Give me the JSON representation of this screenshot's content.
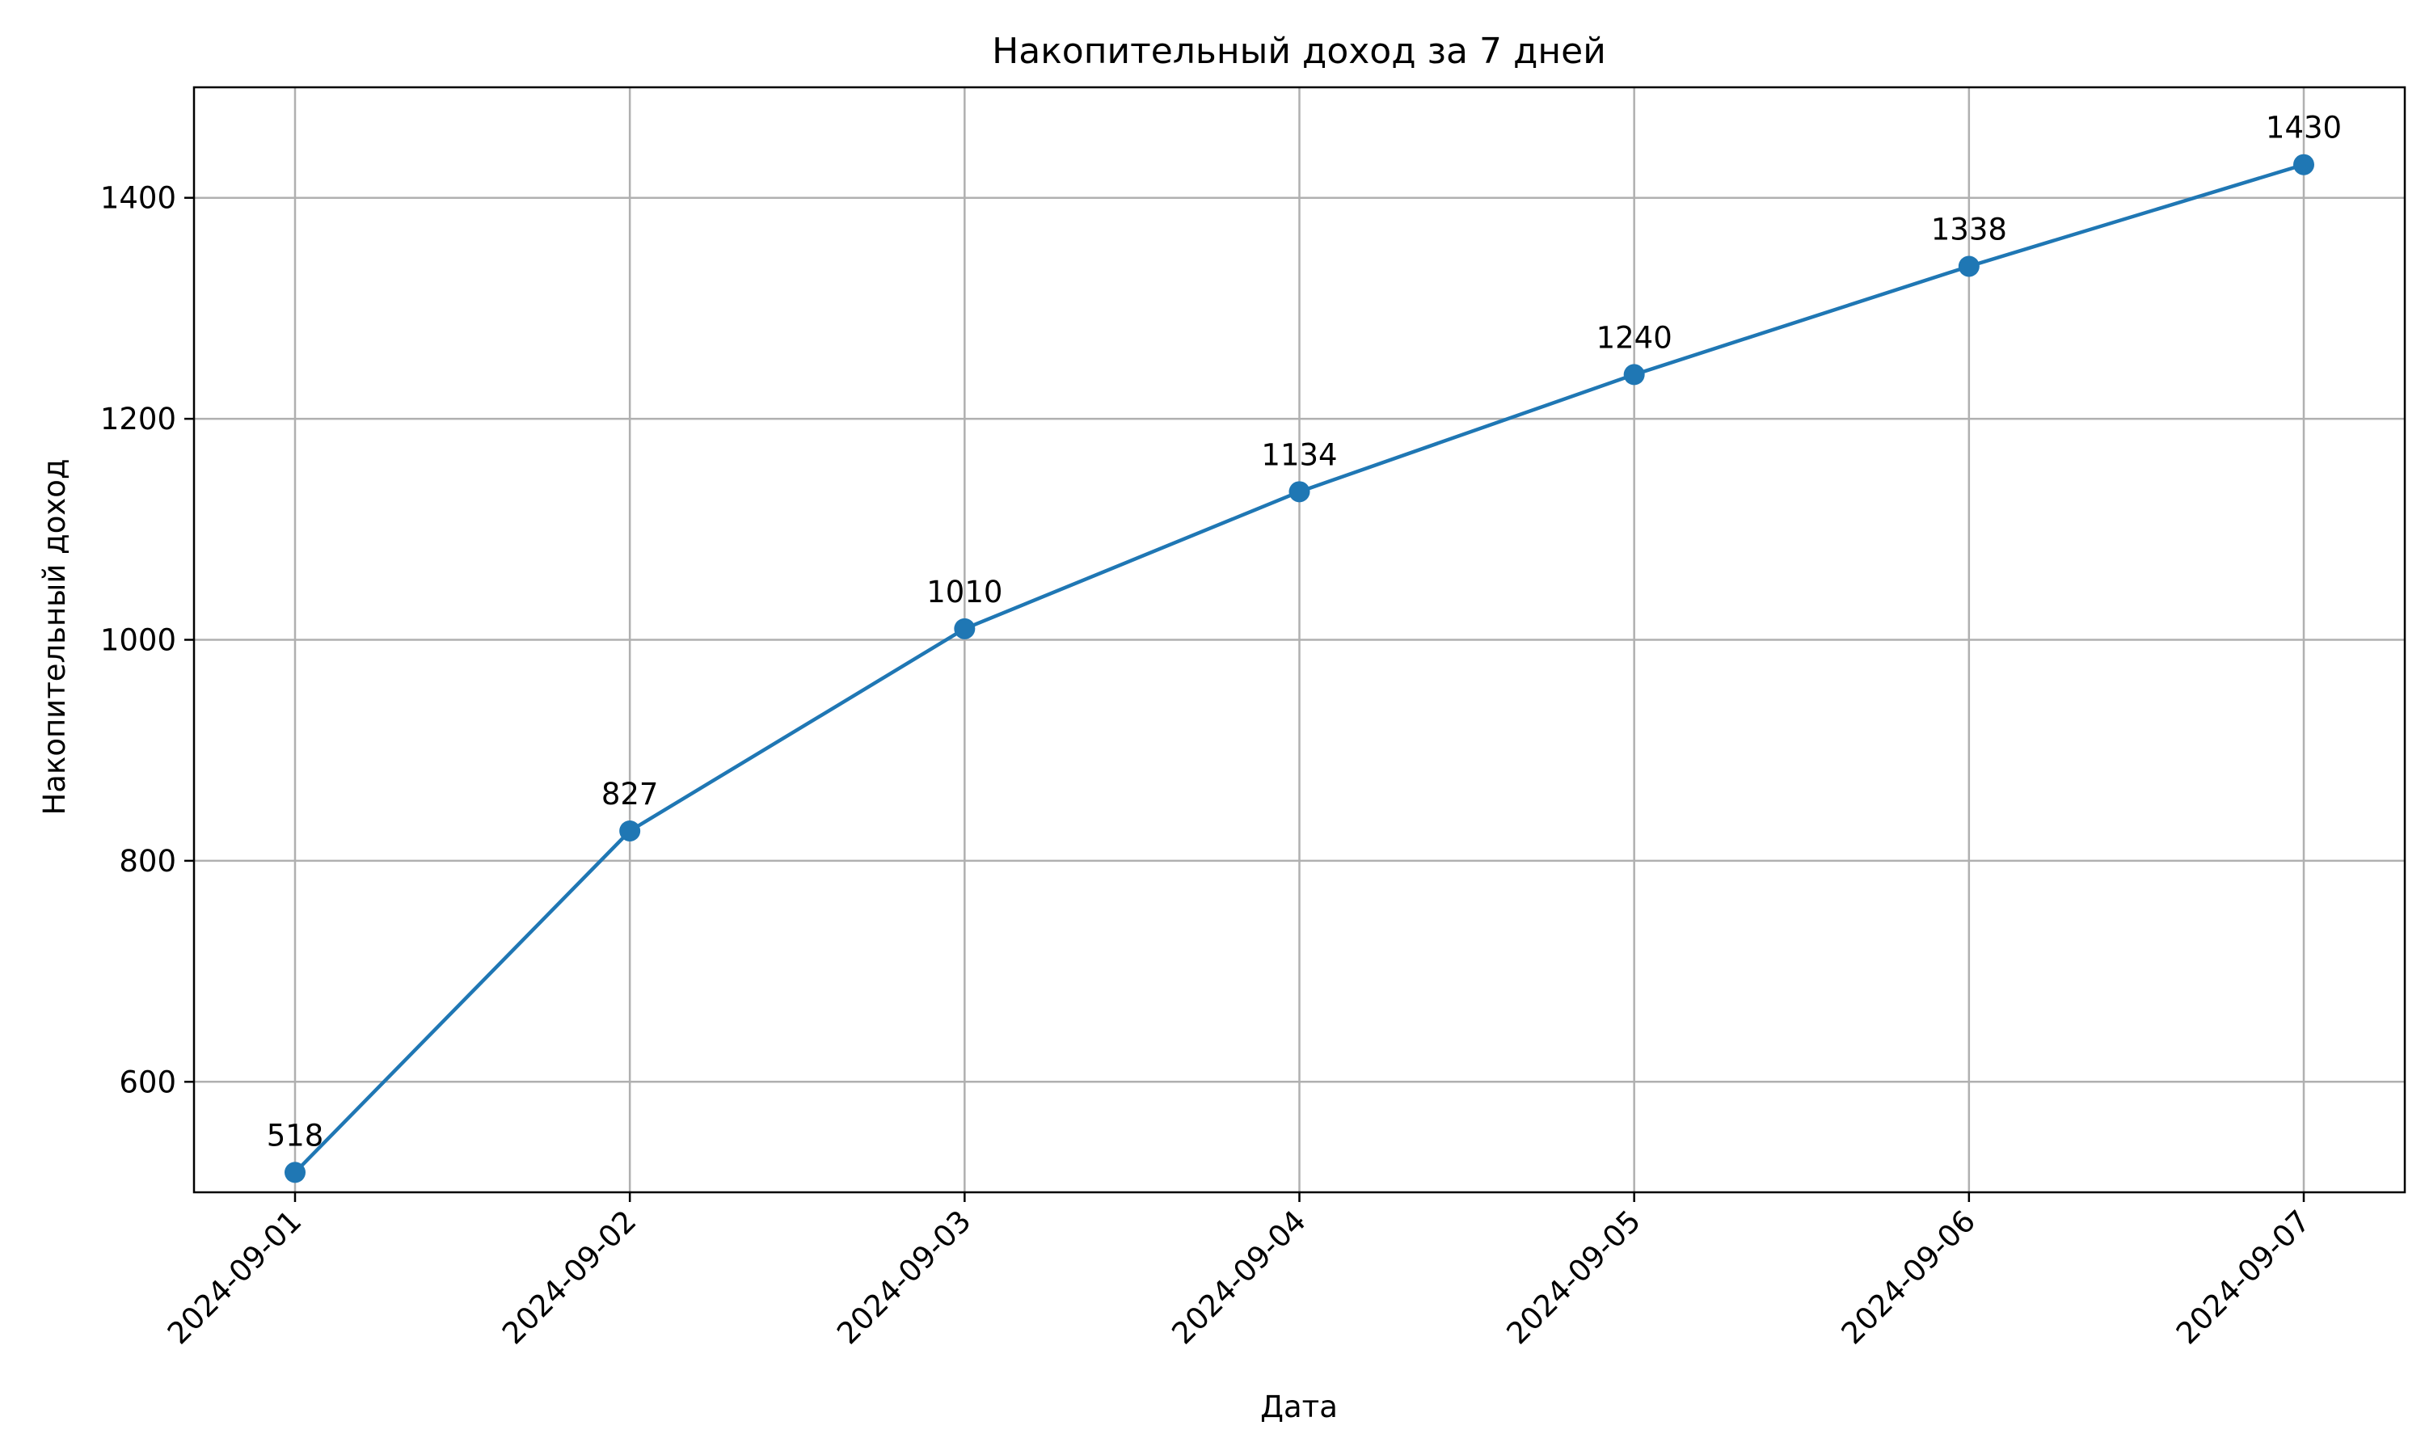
{
  "chart_data": {
    "type": "line",
    "title": "Накопительный доход за 7 дней",
    "xlabel": "Дата",
    "ylabel": "Накопительный доход",
    "categories": [
      "2024-09-01",
      "2024-09-02",
      "2024-09-03",
      "2024-09-04",
      "2024-09-05",
      "2024-09-06",
      "2024-09-07"
    ],
    "series": [
      {
        "values": [
          518,
          827,
          1010,
          1134,
          1240,
          1338,
          1430
        ],
        "color": "#1f77b4",
        "marker": "circle"
      }
    ],
    "data_labels": [
      "518",
      "827",
      "1010",
      "1134",
      "1240",
      "1338",
      "1430"
    ],
    "y_ticks": [
      600,
      800,
      1000,
      1200,
      1400
    ],
    "ylim": [
      500,
      1500
    ],
    "grid": true,
    "legend": "none",
    "x_tick_rotation": "45°"
  }
}
